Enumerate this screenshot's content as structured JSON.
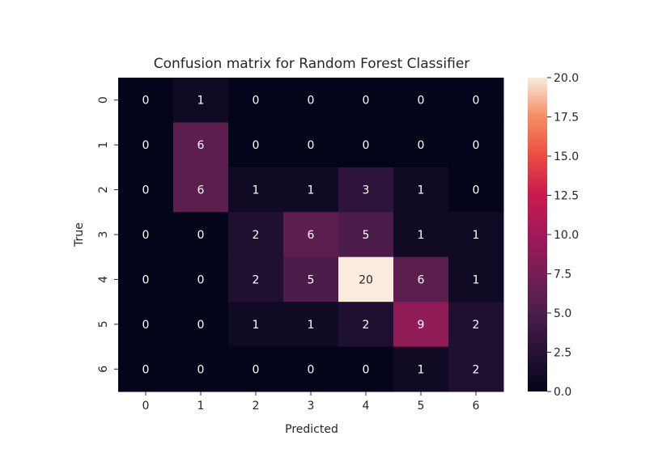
{
  "chart_data": {
    "type": "heatmap",
    "title": "Confusion matrix for Random Forest Classifier",
    "xlabel": "Predicted",
    "ylabel": "True",
    "x_categories": [
      "0",
      "1",
      "2",
      "3",
      "4",
      "5",
      "6"
    ],
    "y_categories": [
      "0",
      "1",
      "2",
      "3",
      "4",
      "5",
      "6"
    ],
    "matrix": [
      [
        0,
        1,
        0,
        0,
        0,
        0,
        0
      ],
      [
        0,
        6,
        0,
        0,
        0,
        0,
        0
      ],
      [
        0,
        6,
        1,
        1,
        3,
        1,
        0
      ],
      [
        0,
        0,
        2,
        6,
        5,
        1,
        1
      ],
      [
        0,
        0,
        2,
        5,
        20,
        6,
        1
      ],
      [
        0,
        0,
        1,
        1,
        2,
        9,
        2
      ],
      [
        0,
        0,
        0,
        0,
        0,
        1,
        2
      ]
    ],
    "colorbar": {
      "min": 0.0,
      "max": 20.0,
      "ticks": [
        "0.0",
        "2.5",
        "5.0",
        "7.5",
        "10.0",
        "12.5",
        "15.0",
        "17.5",
        "20.0"
      ],
      "colormap": "rocket"
    }
  }
}
